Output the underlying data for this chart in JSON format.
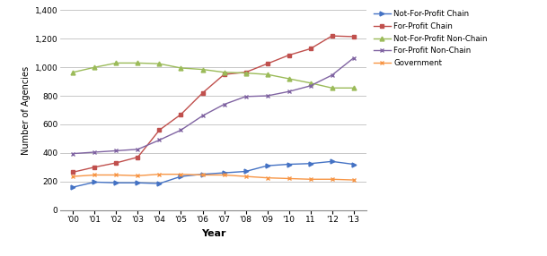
{
  "years": [
    2000,
    2001,
    2002,
    2003,
    2004,
    2005,
    2006,
    2007,
    2008,
    2009,
    2010,
    2011,
    2012,
    2013
  ],
  "year_labels": [
    "'00",
    "'01",
    "'02",
    "'03",
    "'04",
    "'05",
    "'06",
    "'07",
    "'08",
    "'09",
    "'10",
    "11",
    "'12",
    "'13"
  ],
  "not_for_profit_chain": [
    160,
    195,
    190,
    190,
    185,
    235,
    250,
    260,
    270,
    310,
    320,
    325,
    340,
    320
  ],
  "for_profit_chain": [
    265,
    300,
    330,
    370,
    560,
    670,
    820,
    950,
    965,
    1025,
    1085,
    1130,
    1220,
    1215
  ],
  "not_for_profit_non_chain": [
    965,
    1000,
    1030,
    1030,
    1025,
    995,
    985,
    965,
    960,
    950,
    920,
    890,
    855,
    855
  ],
  "for_profit_non_chain": [
    395,
    405,
    415,
    425,
    490,
    560,
    660,
    740,
    795,
    800,
    830,
    870,
    945,
    1065
  ],
  "government": [
    235,
    245,
    245,
    240,
    250,
    250,
    245,
    245,
    235,
    225,
    220,
    215,
    215,
    210
  ],
  "series_colors": {
    "not_for_profit_chain": "#4472C4",
    "for_profit_chain": "#C0504D",
    "not_for_profit_non_chain": "#9BBB59",
    "for_profit_non_chain": "#8064A2",
    "government": "#F79646"
  },
  "series_labels": {
    "not_for_profit_chain": "Not-For-Profit Chain",
    "for_profit_chain": "For-Profit Chain",
    "not_for_profit_non_chain": "Not-For-Profit Non-Chain",
    "for_profit_non_chain": "For-Profit Non-Chain",
    "government": "Government"
  },
  "markers": {
    "not_for_profit_chain": ">",
    "for_profit_chain": "s",
    "not_for_profit_non_chain": "^",
    "for_profit_non_chain": "x",
    "government": "x"
  },
  "xlabel": "Year",
  "ylabel": "Number of Agencies",
  "ylim": [
    0,
    1400
  ],
  "yticks": [
    0,
    200,
    400,
    600,
    800,
    1000,
    1200,
    1400
  ],
  "background_color": "#ffffff",
  "grid_color": "#b0b0b0"
}
